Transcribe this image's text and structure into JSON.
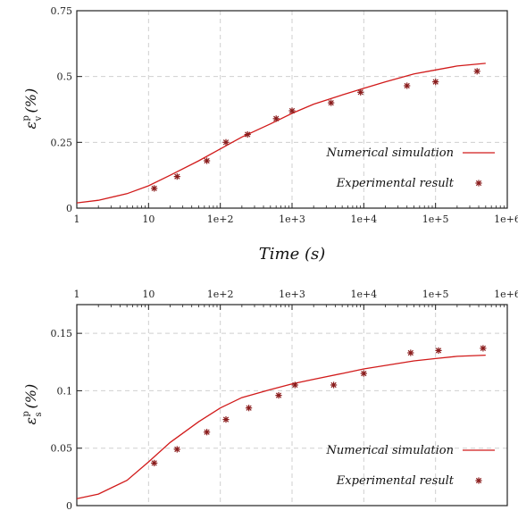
{
  "chart_data": [
    {
      "type": "scatter",
      "xscale": "log",
      "xlim": [
        1,
        1000000
      ],
      "ylim": [
        0,
        0.75
      ],
      "x_tick_labels": [
        "1",
        "10",
        "1e+2",
        "1e+3",
        "1e+4",
        "1e+5",
        "1e+6"
      ],
      "y_tick_labels": [
        "0",
        "0.25",
        "0.5",
        "0.75"
      ],
      "y_ticks": [
        0,
        0.25,
        0.5,
        0.75
      ],
      "xlabel": "Time (s)",
      "ylabel": {
        "main": "ε",
        "sup": "p",
        "sub": "v",
        "unit": "(%)"
      },
      "grid": true,
      "legend_position": "bottom-right",
      "series": [
        {
          "name": "Numerical simulation",
          "kind": "line",
          "color": "#d11a1a",
          "x": [
            1,
            2,
            5,
            10,
            20,
            50,
            100,
            200,
            500,
            1000,
            2000,
            5000,
            10000,
            20000,
            50000,
            100000,
            200000,
            500000
          ],
          "y": [
            0.02,
            0.03,
            0.055,
            0.085,
            0.125,
            0.18,
            0.225,
            0.27,
            0.32,
            0.36,
            0.395,
            0.43,
            0.455,
            0.48,
            0.51,
            0.525,
            0.54,
            0.55
          ]
        },
        {
          "name": "Experimental result",
          "kind": "markers",
          "color": "#8a1c1c",
          "x": [
            12,
            25,
            65,
            120,
            240,
            600,
            1000,
            3500,
            9000,
            40000,
            100000,
            380000
          ],
          "y": [
            0.075,
            0.12,
            0.18,
            0.25,
            0.28,
            0.34,
            0.37,
            0.4,
            0.44,
            0.465,
            0.48,
            0.52
          ]
        }
      ]
    },
    {
      "type": "scatter",
      "xscale": "log",
      "xlim": [
        1,
        1000000
      ],
      "ylim": [
        0,
        0.175
      ],
      "x_tick_labels": [
        "1",
        "10",
        "1e+2",
        "1e+3",
        "1e+4",
        "1e+5",
        "1e+6"
      ],
      "y_tick_labels": [
        "0",
        "0.05",
        "0.1",
        "0.15"
      ],
      "y_ticks": [
        0,
        0.05,
        0.1,
        0.15
      ],
      "xlabel": "",
      "ylabel": {
        "main": "ε",
        "sup": "p",
        "sub": "s",
        "unit": "(%)"
      },
      "grid": true,
      "legend_position": "bottom-right",
      "series": [
        {
          "name": "Numerical simulation",
          "kind": "line",
          "color": "#d11a1a",
          "x": [
            1,
            2,
            5,
            10,
            20,
            50,
            100,
            200,
            500,
            1000,
            2000,
            5000,
            10000,
            20000,
            50000,
            100000,
            200000,
            500000
          ],
          "y": [
            0.006,
            0.01,
            0.022,
            0.038,
            0.055,
            0.073,
            0.085,
            0.094,
            0.101,
            0.106,
            0.11,
            0.115,
            0.119,
            0.122,
            0.126,
            0.128,
            0.13,
            0.131
          ]
        },
        {
          "name": "Experimental result",
          "kind": "markers",
          "color": "#8a1c1c",
          "x": [
            12,
            25,
            65,
            120,
            250,
            650,
            1100,
            3800,
            10000,
            45000,
            110000,
            460000
          ],
          "y": [
            0.037,
            0.049,
            0.064,
            0.075,
            0.085,
            0.096,
            0.105,
            0.105,
            0.115,
            0.133,
            0.135,
            0.137
          ]
        }
      ]
    }
  ]
}
